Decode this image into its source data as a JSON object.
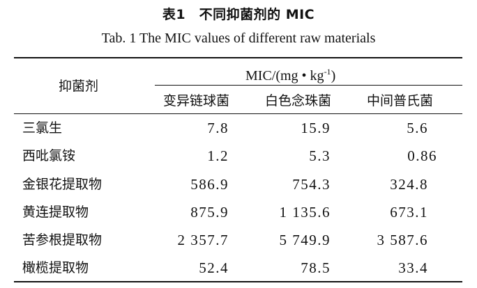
{
  "caption": {
    "cn": "表1　不同抑菌剂的 MIC",
    "en": "Tab. 1    The MIC values of different raw materials"
  },
  "table": {
    "header": {
      "row_label": "抑菌剂",
      "group_label_main": "MIC/(mg • kg",
      "group_label_sup": "-1",
      "group_label_end": ")",
      "columns": [
        "变异链球菌",
        "白色念珠菌",
        "中间普氏菌"
      ]
    },
    "rows": [
      {
        "name": "三氯生",
        "values": [
          "7.8",
          "15.9",
          "5.6"
        ]
      },
      {
        "name": "西吡氯铵",
        "values": [
          "1.2",
          "5.3",
          "0.86"
        ]
      },
      {
        "name": "金银花提取物",
        "values": [
          "586.9",
          "754.3",
          "324.8"
        ]
      },
      {
        "name": "黄连提取物",
        "values": [
          "875.9",
          "1 135.6",
          "673.1"
        ]
      },
      {
        "name": "苦参根提取物",
        "values": [
          "2 357.7",
          "5 749.9",
          "3 587.6"
        ]
      },
      {
        "name": "橄榄提取物",
        "values": [
          "52.4",
          "78.5",
          "33.4"
        ]
      }
    ]
  }
}
